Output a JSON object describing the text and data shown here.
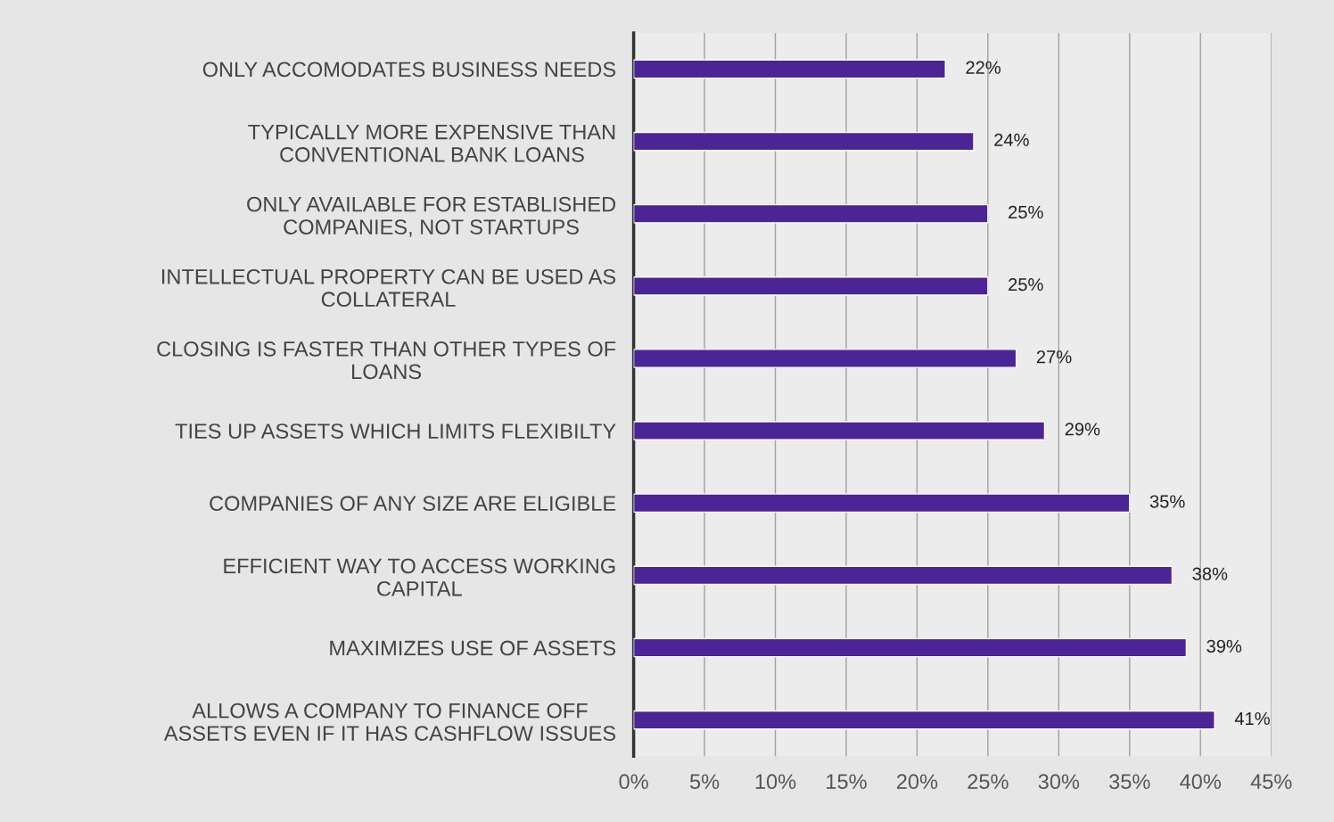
{
  "chart_data": {
    "type": "bar",
    "orientation": "horizontal",
    "categories": [
      "ONLY ACCOMODATES BUSINESS NEEDS",
      "TYPICALLY MORE EXPENSIVE THAN\nCONVENTIONAL BANK LOANS",
      "ONLY AVAILABLE FOR ESTABLISHED\nCOMPANIES, NOT STARTUPS",
      "INTELLECTUAL PROPERTY CAN BE USED AS\nCOLLATERAL",
      "CLOSING IS FASTER THAN OTHER TYPES OF\nLOANS",
      "TIES UP ASSETS WHICH LIMITS FLEXIBILTY",
      "COMPANIES OF ANY SIZE ARE ELIGIBLE",
      "EFFICIENT WAY TO ACCESS WORKING\nCAPITAL",
      "MAXIMIZES USE OF ASSETS",
      "ALLOWS A COMPANY TO FINANCE OFF\nASSETS EVEN IF IT HAS CASHFLOW ISSUES"
    ],
    "values": [
      22,
      24,
      25,
      25,
      27,
      29,
      35,
      38,
      39,
      41
    ],
    "value_labels": [
      "22%",
      "24%",
      "25%",
      "25%",
      "27%",
      "29%",
      "35%",
      "38%",
      "39%",
      "41%"
    ],
    "color": "#4b2496",
    "xlim": [
      0,
      45
    ],
    "xticks": [
      {
        "value": 0,
        "label": "0%"
      },
      {
        "value": 5,
        "label": "5%"
      },
      {
        "value": 10,
        "label": "10%"
      },
      {
        "value": 15,
        "label": "15%"
      },
      {
        "value": 20,
        "label": "20%"
      },
      {
        "value": 25,
        "label": "25%"
      },
      {
        "value": 30,
        "label": "30%"
      },
      {
        "value": 35,
        "label": "35%"
      },
      {
        "value": 40,
        "label": "40%"
      },
      {
        "value": 45,
        "label": "45%"
      }
    ],
    "grid": "x",
    "legend": false
  }
}
